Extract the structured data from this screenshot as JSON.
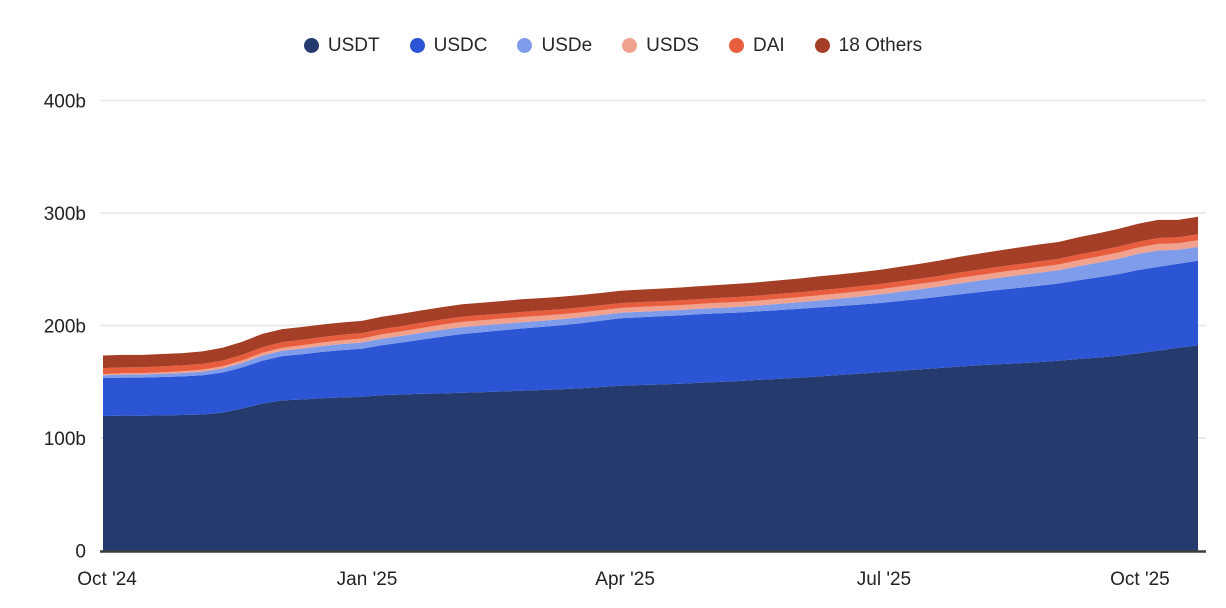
{
  "chart_data": {
    "type": "area",
    "stacked": true,
    "title": "",
    "xlabel": "",
    "ylabel": "",
    "unit": "billions USD",
    "ylim": [
      0,
      400
    ],
    "grid": "horizontal",
    "legend_position": "top",
    "grid_color": "#ebebeb",
    "axis_line_color": "#3d3d3d",
    "tick_text_color": "#222222",
    "y_ticks": [
      {
        "label": "0",
        "value": 0
      },
      {
        "label": "100b",
        "value": 100
      },
      {
        "label": "200b",
        "value": 200
      },
      {
        "label": "300b",
        "value": 300
      },
      {
        "label": "400b",
        "value": 400
      }
    ],
    "x_ticks": [
      {
        "label": "Oct '24",
        "pos": 0.0037
      },
      {
        "label": "Jan '25",
        "pos": 0.2411
      },
      {
        "label": "Apr '25",
        "pos": 0.4768
      },
      {
        "label": "Jul '25",
        "pos": 0.7132
      },
      {
        "label": "Oct '25",
        "pos": 0.947
      }
    ],
    "x_range_note": "weekly points, Oct 2024 to late Oct 2025",
    "series": [
      {
        "name": "USDT",
        "color": "#253a6d",
        "values": [
          119.6,
          119.9,
          119.7,
          120.1,
          120.4,
          120.9,
          122.6,
          126.2,
          130.6,
          133.4,
          134.2,
          135.3,
          136.1,
          136.5,
          138.1,
          138.7,
          139.3,
          139.6,
          140.2,
          140.7,
          141.3,
          142.0,
          142.7,
          143.4,
          144.2,
          145.3,
          146.5,
          147.1,
          147.6,
          148.2,
          149.1,
          149.9,
          150.7,
          151.7,
          152.7,
          153.7,
          154.8,
          156.0,
          157.2,
          158.4,
          159.7,
          161.0,
          162.2,
          163.5,
          164.6,
          165.5,
          166.4,
          167.5,
          168.7,
          170.2,
          171.5,
          173.1,
          175.3,
          177.7,
          180.2,
          182.5
        ]
      },
      {
        "name": "USDC",
        "color": "#2b55d4",
        "values": [
          33.6,
          33.8,
          34.0,
          34.1,
          34.4,
          34.9,
          35.6,
          36.6,
          38.1,
          39.4,
          40.3,
          41.2,
          42.0,
          42.8,
          44.4,
          46.2,
          48.2,
          50.4,
          52.2,
          53.3,
          54.3,
          55.3,
          56.0,
          56.8,
          57.8,
          58.9,
          59.9,
          60.3,
          60.6,
          60.8,
          61.0,
          61.0,
          60.9,
          61.0,
          61.1,
          61.2,
          61.3,
          61.3,
          61.4,
          61.6,
          62.1,
          62.6,
          63.3,
          64.1,
          65.1,
          66.1,
          67.0,
          67.8,
          68.6,
          70.1,
          71.4,
          72.6,
          74.0,
          74.4,
          74.7,
          75.0
        ]
      },
      {
        "name": "USDe",
        "color": "#7e9cea",
        "values": [
          2.6,
          2.7,
          2.8,
          2.9,
          3.0,
          3.2,
          3.6,
          4.0,
          4.5,
          4.8,
          5.0,
          5.3,
          5.5,
          5.6,
          5.8,
          5.9,
          6.0,
          6.1,
          6.1,
          6.0,
          5.8,
          5.6,
          5.4,
          5.3,
          5.2,
          5.1,
          5.0,
          4.9,
          4.8,
          4.8,
          4.8,
          4.9,
          5.0,
          5.2,
          5.5,
          5.8,
          6.2,
          6.6,
          7.1,
          7.6,
          8.1,
          8.6,
          9.1,
          9.7,
          10.2,
          10.7,
          11.2,
          11.6,
          11.8,
          12.4,
          13.0,
          13.7,
          14.4,
          14.6,
          12.4,
          12.3
        ]
      },
      {
        "name": "USDS",
        "color": "#f0a28e",
        "values": [
          1.0,
          1.1,
          1.2,
          1.4,
          1.6,
          1.8,
          2.0,
          2.2,
          2.5,
          2.7,
          2.9,
          3.1,
          3.3,
          3.5,
          3.8,
          4.0,
          4.2,
          4.5,
          4.6,
          4.6,
          4.6,
          4.6,
          4.6,
          4.5,
          4.4,
          4.3,
          4.2,
          4.2,
          4.3,
          4.3,
          4.3,
          4.4,
          4.4,
          4.4,
          4.5,
          4.5,
          4.6,
          4.6,
          4.7,
          4.7,
          4.7,
          4.8,
          4.8,
          4.9,
          4.9,
          5.0,
          5.0,
          5.1,
          5.1,
          5.3,
          5.4,
          5.5,
          5.6,
          5.8,
          5.9,
          6.0
        ]
      },
      {
        "name": "DAI",
        "color": "#e85d3d",
        "values": [
          5.3,
          5.3,
          5.2,
          5.2,
          5.1,
          5.1,
          5.0,
          5.0,
          4.9,
          4.9,
          4.9,
          4.8,
          4.8,
          4.8,
          4.7,
          4.7,
          4.7,
          4.6,
          4.6,
          4.6,
          4.5,
          4.5,
          4.5,
          4.4,
          4.4,
          4.3,
          4.3,
          4.3,
          4.3,
          4.3,
          4.3,
          4.3,
          4.4,
          4.4,
          4.4,
          4.4,
          4.5,
          4.5,
          4.5,
          4.5,
          4.6,
          4.6,
          4.7,
          4.8,
          4.8,
          4.9,
          4.9,
          5.0,
          5.0,
          5.1,
          5.1,
          5.2,
          5.2,
          5.3,
          5.3,
          5.3
        ]
      },
      {
        "name": "18 Others",
        "color": "#a43e26",
        "values": [
          11.2,
          11.1,
          11.0,
          11.0,
          11.0,
          11.1,
          11.4,
          11.6,
          11.9,
          11.6,
          11.4,
          11.2,
          11.0,
          10.9,
          11.0,
          11.0,
          11.0,
          11.0,
          11.1,
          11.1,
          11.2,
          11.3,
          11.2,
          11.1,
          11.1,
          11.0,
          11.0,
          11.1,
          11.2,
          11.4,
          11.5,
          11.6,
          11.8,
          11.9,
          12.0,
          12.2,
          12.3,
          12.4,
          12.5,
          12.6,
          12.9,
          13.2,
          13.6,
          14.0,
          14.3,
          14.5,
          14.8,
          15.0,
          15.0,
          15.3,
          15.6,
          15.8,
          16.0,
          16.1,
          15.4,
          15.6
        ]
      }
    ]
  }
}
